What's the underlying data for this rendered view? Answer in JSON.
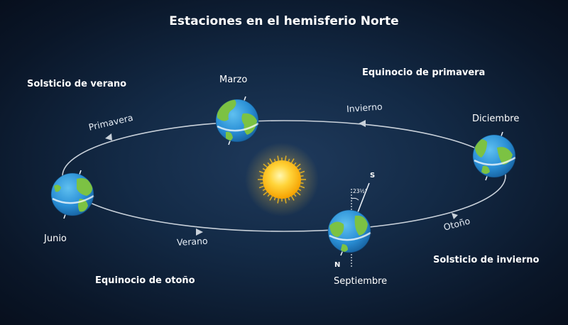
{
  "title": "Estaciones en el hemisferio Norte",
  "corner_labels": {
    "top_left": "Solsticio de verano",
    "top_right": "Equinocio de primavera",
    "bottom_left": "Equinocio de otoño",
    "bottom_right": "Solsticio de invierno"
  },
  "month_labels": {
    "march": "Marzo",
    "june": "Junio",
    "september": "Septiembre",
    "december": "Diciembre"
  },
  "orbit_labels": {
    "spring": "Primavera",
    "winter": "Invierno",
    "summer": "Verano",
    "autumn": "Otoño"
  },
  "axis": {
    "south": "S",
    "north": "N",
    "tilt": "23½°"
  },
  "colors": {
    "orbit": "#c9d1da",
    "sun": "#ffc21a",
    "ocean": "#2a8fd6",
    "land": "#7cc243"
  }
}
